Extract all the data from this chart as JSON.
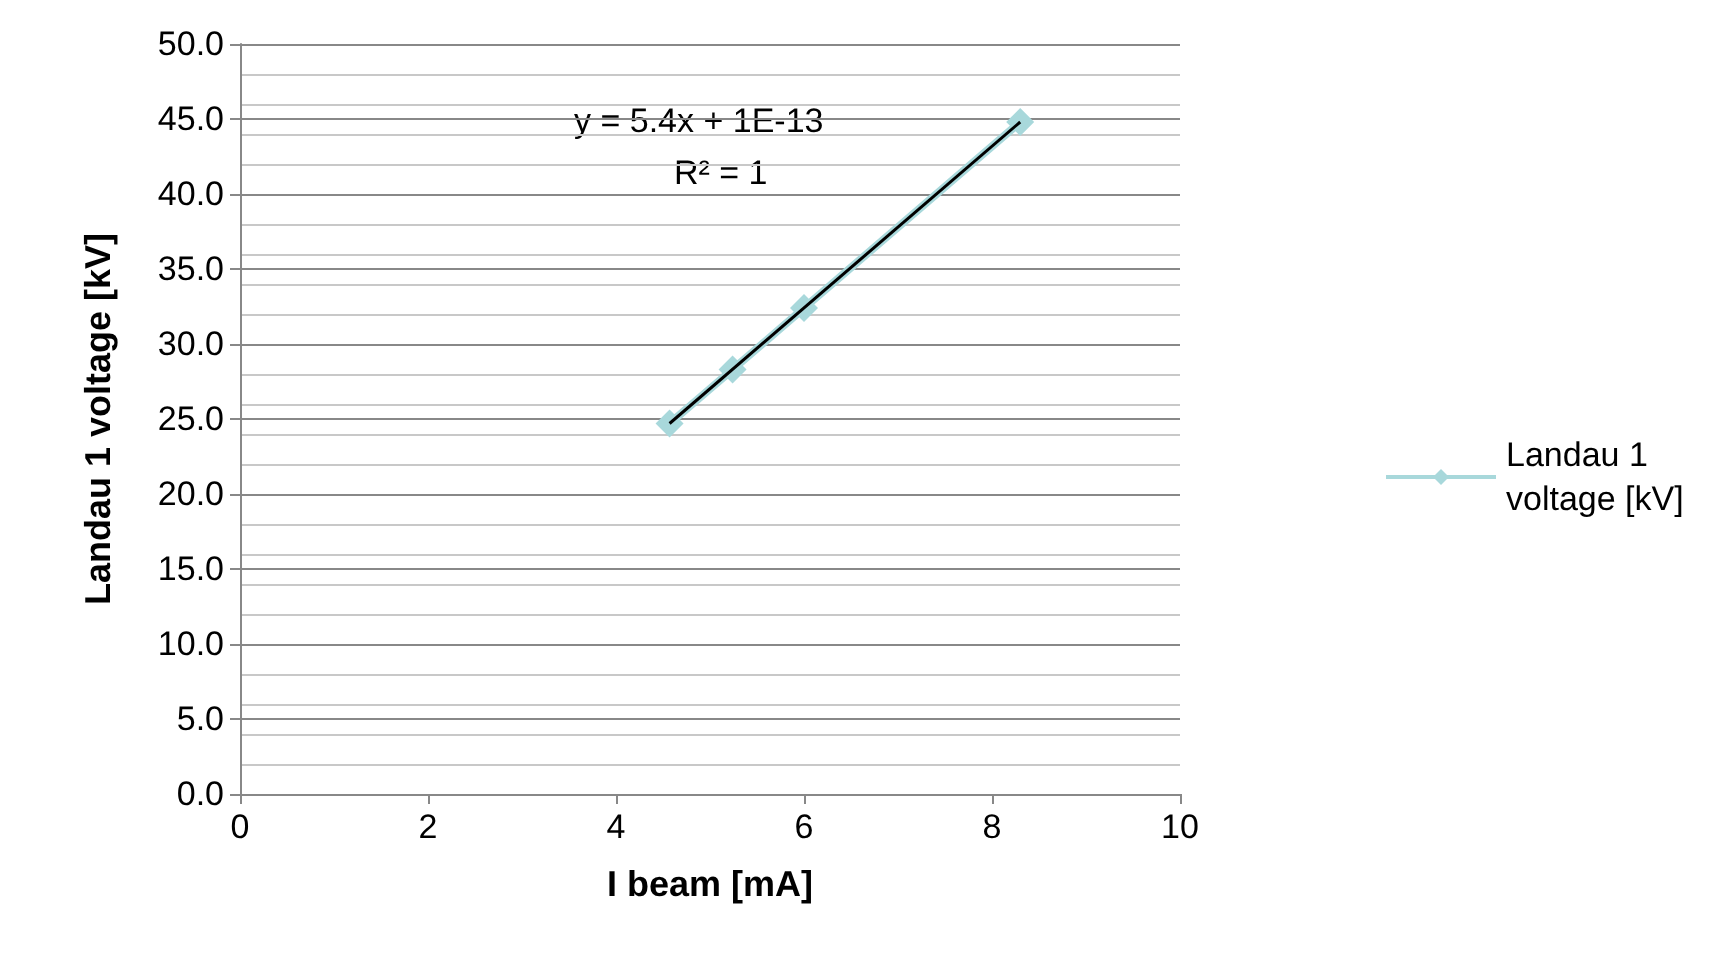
{
  "chart_data": {
    "type": "line",
    "xlabel": "I beam [mA]",
    "ylabel": "Landau 1 voltage [kV]",
    "xlim": [
      0,
      10
    ],
    "xticks": [
      0,
      2,
      4,
      6,
      8,
      10
    ],
    "ylim": [
      0,
      50
    ],
    "yticks": [
      {
        "value": 0,
        "label": "0.0"
      },
      {
        "value": 5,
        "label": "5.0"
      },
      {
        "value": 10,
        "label": "10.0"
      },
      {
        "value": 15,
        "label": "15.0"
      },
      {
        "value": 20,
        "label": "20.0"
      },
      {
        "value": 25,
        "label": "25.0"
      },
      {
        "value": 30,
        "label": "30.0"
      },
      {
        "value": 35,
        "label": "35.0"
      },
      {
        "value": 40,
        "label": "40.0"
      },
      {
        "value": 45,
        "label": "45.0"
      },
      {
        "value": 50,
        "label": "50.0"
      }
    ],
    "series": [
      {
        "name": "Landau 1 voltage [kV]",
        "color": "#a8d8db",
        "x": [
          4.57,
          5.24,
          6.0,
          8.3
        ],
        "values": [
          24.7,
          28.3,
          32.4,
          44.8
        ],
        "marker": "diamond"
      },
      {
        "color": "#000000",
        "x": [
          4.57,
          8.3
        ],
        "values": [
          24.7,
          44.8
        ],
        "marker": "none"
      }
    ],
    "annotations": [
      "y = 5.4x + 1E-13",
      "R² = 1"
    ],
    "grid": "y",
    "legend": "right",
    "line_style": "solid"
  }
}
